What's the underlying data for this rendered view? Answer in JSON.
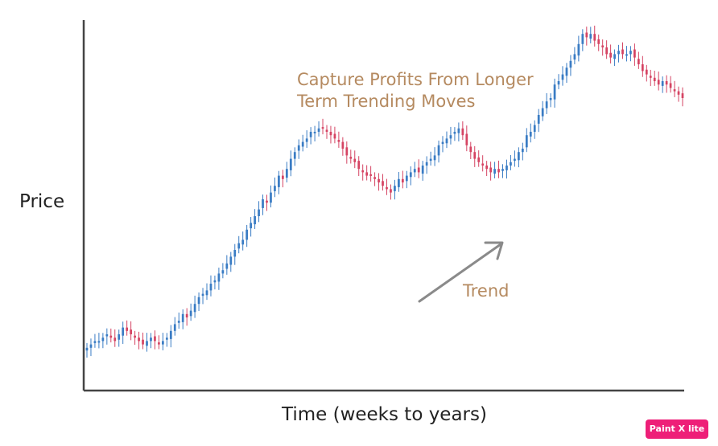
{
  "chart_data": {
    "type": "candlestick",
    "title": "",
    "xlabel": "Time (weeks to years)",
    "ylabel": "Price",
    "annotation_lines": [
      "Capture Profits From Longer",
      "Term Trending Moves"
    ],
    "arrow_label": "Trend",
    "grid": false,
    "colors": {
      "up": "#3a7cc4",
      "down": "#d54463",
      "axis": "#444444",
      "arrow": "#8a8a8a",
      "text_accent": "#b58a60"
    },
    "ylim": [
      0,
      100
    ],
    "close": [
      6,
      7,
      8,
      8,
      9,
      10,
      9,
      8,
      10,
      12,
      11,
      10,
      9,
      8,
      7,
      8,
      9,
      8,
      7,
      8,
      9,
      11,
      13,
      14,
      16,
      15,
      17,
      19,
      21,
      22,
      23,
      25,
      26,
      28,
      29,
      31,
      33,
      35,
      37,
      38,
      41,
      43,
      45,
      47,
      50,
      49,
      52,
      54,
      57,
      56,
      59,
      62,
      64,
      66,
      67,
      68,
      70,
      70,
      71,
      71,
      70,
      69,
      68,
      67,
      65,
      63,
      62,
      61,
      59,
      58,
      57,
      57,
      56,
      55,
      54,
      53,
      52,
      54,
      56,
      55,
      57,
      58,
      59,
      58,
      60,
      61,
      62,
      63,
      66,
      67,
      68,
      69,
      70,
      71,
      69,
      66,
      64,
      62,
      61,
      60,
      59,
      58,
      59,
      58,
      59,
      60,
      61,
      62,
      64,
      65,
      69,
      70,
      72,
      75,
      77,
      79,
      80,
      84,
      85,
      87,
      89,
      91,
      93,
      96,
      99,
      98,
      99,
      97,
      96,
      95,
      93,
      92,
      93,
      94,
      93,
      93,
      94,
      92,
      90,
      88,
      87,
      86,
      85,
      84,
      85,
      84,
      83,
      82,
      81,
      80
    ],
    "watermark": "Paint X lite"
  }
}
